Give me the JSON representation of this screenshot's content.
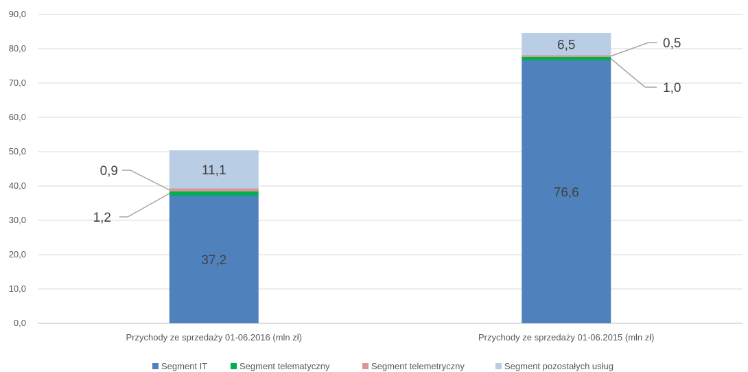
{
  "chart_data": {
    "type": "bar",
    "stacked": true,
    "title": "",
    "xlabel": "",
    "ylabel": "",
    "categories": [
      "Przychody ze sprzedaży 01-06.2016 (mln zł)",
      "Przychody ze sprzedaży 01-06.2015 (mln zł)"
    ],
    "series": [
      {
        "name": "Segment IT",
        "color": "#4f81bd",
        "values": [
          37.2,
          76.6
        ],
        "labels": [
          "37,2",
          "76,6"
        ]
      },
      {
        "name": "Segment telematyczny",
        "color": "#00b050",
        "values": [
          1.2,
          1.0
        ],
        "labels": [
          "1,2",
          "1,0"
        ]
      },
      {
        "name": "Segment telemetryczny",
        "color": "#d99694",
        "values": [
          0.9,
          0.5
        ],
        "labels": [
          "0,9",
          "0,5"
        ]
      },
      {
        "name": "Segment pozostałych usług",
        "color": "#b9cde5",
        "values": [
          11.1,
          6.5
        ],
        "labels": [
          "11,1",
          "6,5"
        ]
      }
    ],
    "ylim": [
      0,
      90
    ],
    "yticks": [
      0,
      10,
      20,
      30,
      40,
      50,
      60,
      70,
      80,
      90
    ],
    "ytick_labels": [
      "0,0",
      "10,0",
      "20,0",
      "30,0",
      "40,0",
      "50,0",
      "60,0",
      "70,0",
      "80,0",
      "90,0"
    ],
    "grid": true,
    "legend_position": "bottom"
  }
}
